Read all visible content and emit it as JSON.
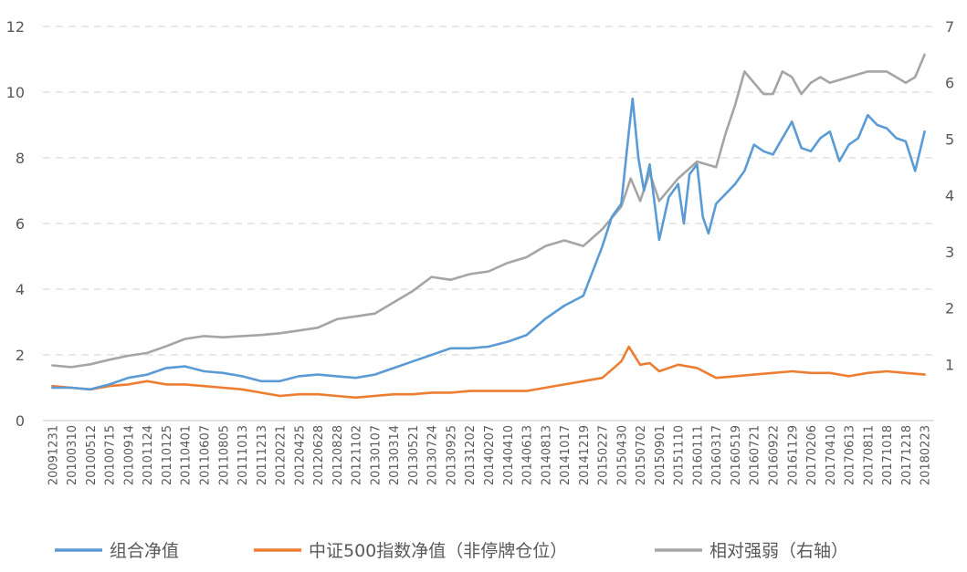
{
  "chart_data": {
    "type": "line",
    "title": "",
    "y_left": {
      "range": [
        0,
        12
      ],
      "ticks": [
        0,
        2,
        4,
        6,
        8,
        10,
        12
      ]
    },
    "y_right": {
      "range": [
        0,
        7
      ],
      "ticks": [
        1,
        2,
        3,
        4,
        5,
        6,
        7
      ]
    },
    "grid": "horizontal-dashed",
    "legend_position": "bottom",
    "x_ticks": [
      "20091231",
      "20100310",
      "20100512",
      "20100715",
      "20100914",
      "20101124",
      "20110125",
      "20110401",
      "20110607",
      "20110805",
      "20111013",
      "20111213",
      "20120221",
      "20120425",
      "20120628",
      "20120828",
      "20121102",
      "20130107",
      "20130314",
      "20130521",
      "20130724",
      "20130925",
      "20131202",
      "20140207",
      "20140410",
      "20140613",
      "20140813",
      "20141017",
      "20141219",
      "20150227",
      "20150430",
      "20150702",
      "20150901",
      "20151110",
      "20160111",
      "20160317",
      "20160519",
      "20160721",
      "20160922",
      "20161129",
      "20170206",
      "20170410",
      "20170613",
      "20170811",
      "20171018",
      "20171218",
      "20180223"
    ],
    "x_count": 47,
    "series": [
      {
        "name": "组合净值",
        "axis": "left",
        "color": "#5B9BD5",
        "points": [
          [
            0,
            1.0
          ],
          [
            1,
            1.0
          ],
          [
            2,
            0.95
          ],
          [
            3,
            1.1
          ],
          [
            4,
            1.3
          ],
          [
            5,
            1.4
          ],
          [
            6,
            1.6
          ],
          [
            7,
            1.65
          ],
          [
            8,
            1.5
          ],
          [
            9,
            1.45
          ],
          [
            10,
            1.35
          ],
          [
            11,
            1.2
          ],
          [
            12,
            1.2
          ],
          [
            13,
            1.35
          ],
          [
            14,
            1.4
          ],
          [
            15,
            1.35
          ],
          [
            16,
            1.3
          ],
          [
            17,
            1.4
          ],
          [
            18,
            1.6
          ],
          [
            19,
            1.8
          ],
          [
            20,
            2.0
          ],
          [
            21,
            2.2
          ],
          [
            22,
            2.2
          ],
          [
            23,
            2.25
          ],
          [
            24,
            2.4
          ],
          [
            25,
            2.6
          ],
          [
            26,
            3.1
          ],
          [
            27,
            3.5
          ],
          [
            28,
            3.8
          ],
          [
            29,
            5.3
          ],
          [
            29.5,
            6.2
          ],
          [
            30,
            6.6
          ],
          [
            30.4,
            8.8
          ],
          [
            30.6,
            9.8
          ],
          [
            30.9,
            8.0
          ],
          [
            31.2,
            7.0
          ],
          [
            31.5,
            7.8
          ],
          [
            32,
            5.5
          ],
          [
            32.5,
            6.8
          ],
          [
            33,
            7.2
          ],
          [
            33.3,
            6.0
          ],
          [
            33.6,
            7.5
          ],
          [
            34,
            7.8
          ],
          [
            34.3,
            6.2
          ],
          [
            34.6,
            5.7
          ],
          [
            35,
            6.6
          ],
          [
            35.5,
            6.9
          ],
          [
            36,
            7.2
          ],
          [
            36.5,
            7.6
          ],
          [
            37,
            8.4
          ],
          [
            37.5,
            8.2
          ],
          [
            38,
            8.1
          ],
          [
            38.5,
            8.6
          ],
          [
            39,
            9.1
          ],
          [
            39.5,
            8.3
          ],
          [
            40,
            8.2
          ],
          [
            40.5,
            8.6
          ],
          [
            41,
            8.8
          ],
          [
            41.5,
            7.9
          ],
          [
            42,
            8.4
          ],
          [
            42.5,
            8.6
          ],
          [
            43,
            9.3
          ],
          [
            43.5,
            9.0
          ],
          [
            44,
            8.9
          ],
          [
            44.5,
            8.6
          ],
          [
            45,
            8.5
          ],
          [
            45.5,
            7.6
          ],
          [
            46,
            8.8
          ]
        ]
      },
      {
        "name": "中证500指数净值（非停牌仓位）",
        "axis": "left",
        "color": "#ED7D31",
        "points": [
          [
            0,
            1.05
          ],
          [
            1,
            1.0
          ],
          [
            2,
            0.95
          ],
          [
            3,
            1.05
          ],
          [
            4,
            1.1
          ],
          [
            5,
            1.2
          ],
          [
            6,
            1.1
          ],
          [
            7,
            1.1
          ],
          [
            8,
            1.05
          ],
          [
            9,
            1.0
          ],
          [
            10,
            0.95
          ],
          [
            11,
            0.85
          ],
          [
            12,
            0.75
          ],
          [
            13,
            0.8
          ],
          [
            14,
            0.8
          ],
          [
            15,
            0.75
          ],
          [
            16,
            0.7
          ],
          [
            17,
            0.75
          ],
          [
            18,
            0.8
          ],
          [
            19,
            0.8
          ],
          [
            20,
            0.85
          ],
          [
            21,
            0.85
          ],
          [
            22,
            0.9
          ],
          [
            23,
            0.9
          ],
          [
            24,
            0.9
          ],
          [
            25,
            0.9
          ],
          [
            26,
            1.0
          ],
          [
            27,
            1.1
          ],
          [
            28,
            1.2
          ],
          [
            29,
            1.3
          ],
          [
            30,
            1.8
          ],
          [
            30.4,
            2.25
          ],
          [
            31,
            1.7
          ],
          [
            31.5,
            1.75
          ],
          [
            32,
            1.5
          ],
          [
            33,
            1.7
          ],
          [
            34,
            1.6
          ],
          [
            35,
            1.3
          ],
          [
            36,
            1.35
          ],
          [
            37,
            1.4
          ],
          [
            38,
            1.45
          ],
          [
            39,
            1.5
          ],
          [
            40,
            1.45
          ],
          [
            41,
            1.45
          ],
          [
            42,
            1.35
          ],
          [
            43,
            1.45
          ],
          [
            44,
            1.5
          ],
          [
            45,
            1.45
          ],
          [
            46,
            1.4
          ]
        ]
      },
      {
        "name": "相对强弱（右轴）",
        "axis": "right",
        "color": "#A5A5A5",
        "points": [
          [
            0,
            0.98
          ],
          [
            1,
            0.95
          ],
          [
            2,
            1.0
          ],
          [
            3,
            1.08
          ],
          [
            4,
            1.15
          ],
          [
            5,
            1.2
          ],
          [
            6,
            1.32
          ],
          [
            7,
            1.45
          ],
          [
            8,
            1.5
          ],
          [
            9,
            1.48
          ],
          [
            10,
            1.5
          ],
          [
            11,
            1.52
          ],
          [
            12,
            1.55
          ],
          [
            13,
            1.6
          ],
          [
            14,
            1.65
          ],
          [
            15,
            1.8
          ],
          [
            16,
            1.85
          ],
          [
            17,
            1.9
          ],
          [
            18,
            2.1
          ],
          [
            19,
            2.3
          ],
          [
            20,
            2.55
          ],
          [
            21,
            2.5
          ],
          [
            22,
            2.6
          ],
          [
            23,
            2.65
          ],
          [
            24,
            2.8
          ],
          [
            25,
            2.9
          ],
          [
            26,
            3.1
          ],
          [
            27,
            3.2
          ],
          [
            28,
            3.1
          ],
          [
            29,
            3.4
          ],
          [
            30,
            3.8
          ],
          [
            30.5,
            4.3
          ],
          [
            31,
            3.9
          ],
          [
            31.5,
            4.4
          ],
          [
            32,
            3.9
          ],
          [
            33,
            4.3
          ],
          [
            34,
            4.6
          ],
          [
            35,
            4.5
          ],
          [
            35.5,
            5.1
          ],
          [
            36,
            5.6
          ],
          [
            36.5,
            6.2
          ],
          [
            37,
            6.0
          ],
          [
            37.5,
            5.8
          ],
          [
            38,
            5.8
          ],
          [
            38.5,
            6.2
          ],
          [
            39,
            6.1
          ],
          [
            39.5,
            5.8
          ],
          [
            40,
            6.0
          ],
          [
            40.5,
            6.1
          ],
          [
            41,
            6.0
          ],
          [
            42,
            6.1
          ],
          [
            43,
            6.2
          ],
          [
            44,
            6.2
          ],
          [
            45,
            6.0
          ],
          [
            45.5,
            6.1
          ],
          [
            46,
            6.5
          ]
        ]
      }
    ]
  }
}
